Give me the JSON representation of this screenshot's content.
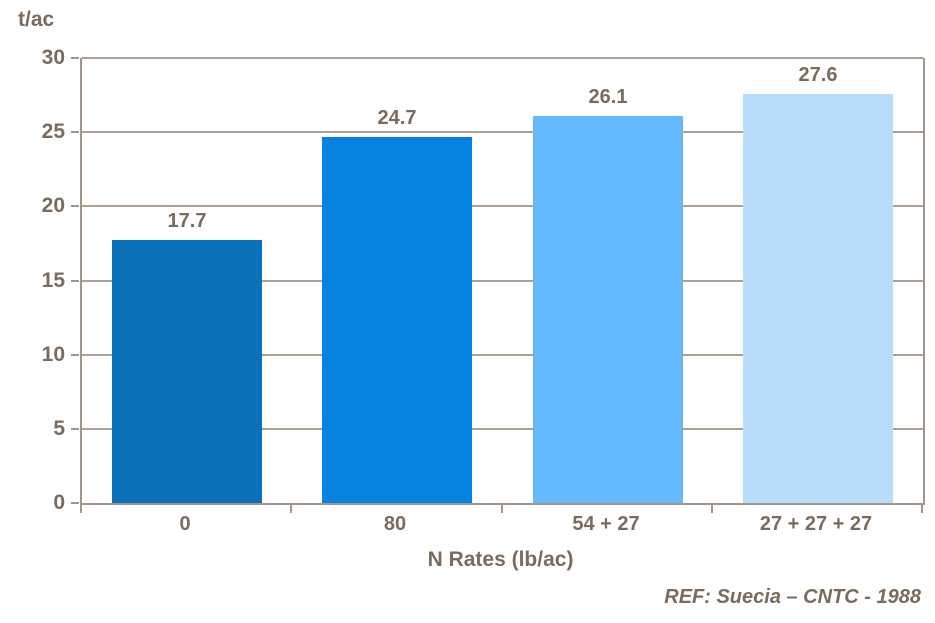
{
  "chart_data": {
    "type": "bar",
    "unit_label": "t/ac",
    "xlabel": "N Rates (lb/ac)",
    "categories": [
      "0",
      "80",
      "54 + 27",
      "27 + 27 + 27"
    ],
    "values": [
      17.7,
      24.7,
      26.1,
      27.6
    ],
    "value_labels": [
      "17.7",
      "24.7",
      "26.1",
      "27.6"
    ],
    "bar_colors": [
      "#0a70b9",
      "#0483e3",
      "#63b9fb",
      "#b8ddfb"
    ],
    "ylim": [
      0,
      30
    ],
    "yticks": [
      0,
      5,
      10,
      15,
      20,
      25,
      30
    ],
    "grid": true,
    "legend": "none",
    "reference": "REF: Suecia – CNTC - 1988"
  },
  "colors": {
    "text": "#7b6b5c",
    "axis": "#a2968a",
    "gridline": "#aba093",
    "background": "#ffffff"
  }
}
